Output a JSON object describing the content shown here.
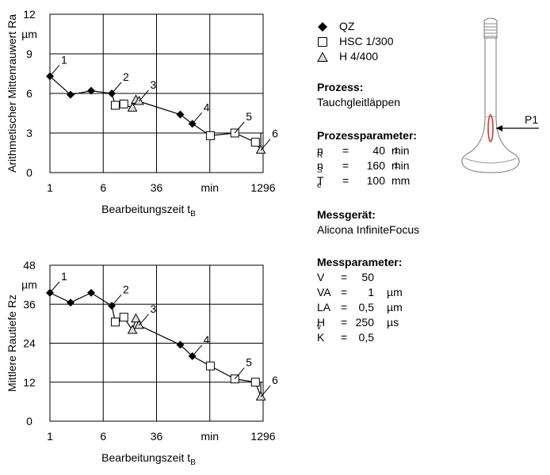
{
  "legend": [
    {
      "label": "QZ",
      "marker": "diamond"
    },
    {
      "label": "HSC 1/300",
      "marker": "square"
    },
    {
      "label": "H 4/400",
      "marker": "triangle"
    }
  ],
  "process": {
    "heading": "Prozess:",
    "value": "Tauchgleitläppen"
  },
  "process_params": {
    "heading": "Prozessparameter:",
    "rows": [
      {
        "sym": "n",
        "sub": "R",
        "eq": "=",
        "val": "40",
        "unit": "min",
        "sup": "-1"
      },
      {
        "sym": "n",
        "sub": "S",
        "eq": "=",
        "val": "160",
        "unit": "min",
        "sup": "-1"
      },
      {
        "sym": "T",
        "sub": "e",
        "eq": "=",
        "val": "100",
        "unit": "mm",
        "sup": ""
      }
    ]
  },
  "device": {
    "heading": "Messgerät:",
    "value": "Alicona InfiniteFocus"
  },
  "measure_params": {
    "heading": "Messparameter:",
    "rows": [
      {
        "sym": "V",
        "sub": "",
        "eq": "=",
        "val": "50",
        "unit": ""
      },
      {
        "sym": "VA",
        "sub": "",
        "eq": "=",
        "val": "1",
        "unit": "µm"
      },
      {
        "sym": "LA",
        "sub": "",
        "eq": "=",
        "val": "0,5",
        "unit": "µm"
      },
      {
        "sym": "H",
        "sub": "v",
        "eq": "=",
        "val": "250",
        "unit": "µs"
      },
      {
        "sym": "K",
        "sub": "",
        "eq": "=",
        "val": "0,5",
        "unit": ""
      }
    ]
  },
  "valve": {
    "label": "P1"
  },
  "chart_data": [
    {
      "type": "line",
      "ylabel": "Arithmetischer Mittenrauwert Ra",
      "xlabel": "Bearbeitungszeit t",
      "xlabel_sub": "B",
      "yunit": "µm",
      "xunit": "min",
      "xscale": "log",
      "xlim": [
        1,
        1296
      ],
      "ylim": [
        0,
        12
      ],
      "xticks": [
        1,
        6,
        36,
        1296
      ],
      "yticks": [
        0,
        3,
        6,
        9,
        12
      ],
      "xgrid": [
        1,
        6,
        36,
        216,
        1296
      ],
      "ygrid": [
        0,
        3,
        6,
        9,
        12
      ],
      "series": [
        {
          "name": "QZ",
          "marker": "diamond",
          "x": [
            1,
            2,
            4,
            8,
            80,
            120
          ],
          "y": [
            7.3,
            5.9,
            6.2,
            6.0,
            4.4,
            3.7
          ]
        },
        {
          "name": "HSC 1/300",
          "marker": "square",
          "x": [
            9,
            12,
            220,
            500,
            1000
          ],
          "y": [
            5.1,
            5.2,
            2.8,
            3.0,
            2.3
          ]
        },
        {
          "name": "H 4/400",
          "marker": "triangle",
          "x": [
            16,
            18,
            20,
            1200
          ],
          "y": [
            4.9,
            5.5,
            5.4,
            1.7
          ]
        }
      ],
      "path": {
        "x": [
          1,
          2,
          4,
          8,
          9,
          12,
          16,
          18,
          20,
          80,
          120,
          220,
          500,
          1000,
          1200,
          1200
        ],
        "y": [
          7.3,
          5.9,
          6.2,
          6.0,
          5.1,
          5.2,
          4.9,
          5.5,
          5.4,
          4.4,
          3.7,
          2.8,
          3.0,
          2.3,
          1.7,
          3.0
        ]
      },
      "annotations": [
        {
          "text": "1",
          "x": 1,
          "y": 7.3
        },
        {
          "text": "2",
          "x": 8,
          "y": 6.0
        },
        {
          "text": "3",
          "x": 20,
          "y": 5.4
        },
        {
          "text": "4",
          "x": 120,
          "y": 3.7
        },
        {
          "text": "5",
          "x": 500,
          "y": 3.0
        },
        {
          "text": "6",
          "x": 1200,
          "y": 1.7
        }
      ]
    },
    {
      "type": "line",
      "ylabel": "Mittlere Rautiefe Rz",
      "xlabel": "Bearbeitungszeit t",
      "xlabel_sub": "B",
      "yunit": "µm",
      "xunit": "min",
      "xscale": "log",
      "xlim": [
        1,
        1296
      ],
      "ylim": [
        0,
        48
      ],
      "xticks": [
        1,
        6,
        36,
        1296
      ],
      "yticks": [
        0,
        12,
        24,
        36,
        48
      ],
      "xgrid": [
        1,
        6,
        36,
        216,
        1296
      ],
      "ygrid": [
        0,
        12,
        24,
        36,
        48
      ],
      "series": [
        {
          "name": "QZ",
          "marker": "diamond",
          "x": [
            1,
            2,
            4,
            8,
            80,
            120
          ],
          "y": [
            39.5,
            36.5,
            39.5,
            35.5,
            23.5,
            20.0
          ]
        },
        {
          "name": "HSC 1/300",
          "marker": "square",
          "x": [
            9,
            12,
            220,
            500,
            1000
          ],
          "y": [
            30.5,
            32.0,
            17.0,
            13.0,
            12.0
          ]
        },
        {
          "name": "H 4/400",
          "marker": "triangle",
          "x": [
            16,
            18,
            20,
            1200
          ],
          "y": [
            28.0,
            31.5,
            29.5,
            7.5
          ]
        }
      ],
      "path": {
        "x": [
          1,
          2,
          4,
          8,
          9,
          12,
          16,
          18,
          20,
          80,
          120,
          220,
          500,
          1000,
          1200,
          1200
        ],
        "y": [
          39.5,
          36.5,
          39.5,
          35.5,
          30.5,
          32.0,
          28.0,
          31.5,
          29.5,
          23.5,
          20.0,
          17.0,
          13.0,
          12.0,
          7.5,
          12.0
        ]
      },
      "annotations": [
        {
          "text": "1",
          "x": 1,
          "y": 39.5
        },
        {
          "text": "2",
          "x": 8,
          "y": 35.5
        },
        {
          "text": "3",
          "x": 20,
          "y": 29.5
        },
        {
          "text": "4",
          "x": 120,
          "y": 20.0
        },
        {
          "text": "5",
          "x": 500,
          "y": 13.0
        },
        {
          "text": "6",
          "x": 1200,
          "y": 7.5
        }
      ]
    }
  ]
}
